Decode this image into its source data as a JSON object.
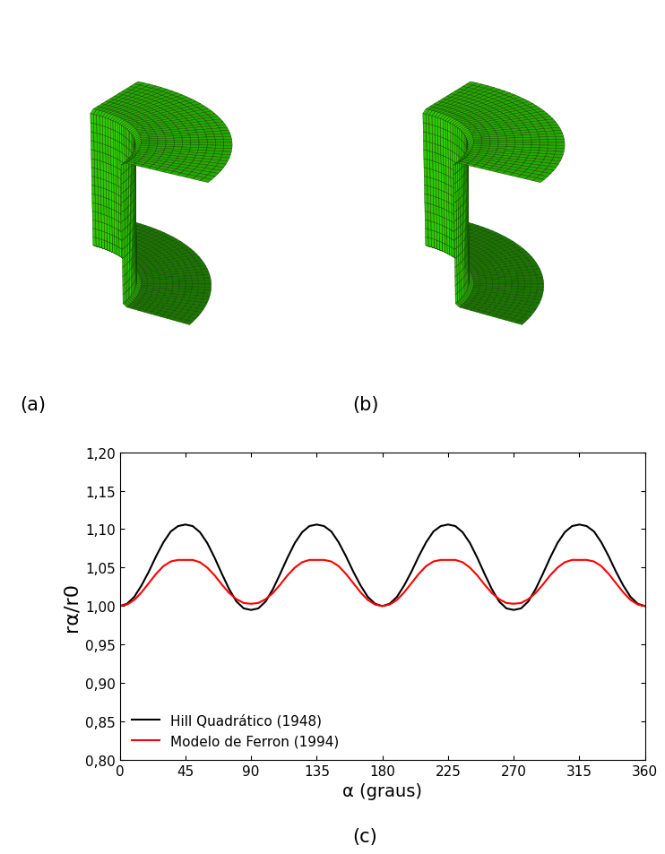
{
  "chart_data": {
    "type": "line",
    "xlabel": "α (graus)",
    "ylabel": "rα/r0",
    "annotations": [
      "(a)",
      "(b)",
      "(c)"
    ],
    "x": [
      0,
      5,
      10,
      15,
      20,
      25,
      30,
      35,
      40,
      45,
      50,
      55,
      60,
      65,
      70,
      75,
      80,
      85,
      90,
      95,
      100,
      105,
      110,
      115,
      120,
      125,
      130,
      135,
      140,
      145,
      150,
      155,
      160,
      165,
      170,
      175,
      180,
      185,
      190,
      195,
      200,
      205,
      210,
      215,
      220,
      225,
      230,
      235,
      240,
      245,
      250,
      255,
      260,
      265,
      270,
      275,
      280,
      285,
      290,
      295,
      300,
      305,
      310,
      315,
      320,
      325,
      330,
      335,
      340,
      345,
      350,
      355,
      360
    ],
    "series": [
      {
        "name": "Hill Quadrático (1948)",
        "color": "#000000",
        "values": [
          1.0,
          1.003,
          1.012,
          1.027,
          1.045,
          1.065,
          1.083,
          1.097,
          1.104,
          1.106,
          1.104,
          1.096,
          1.082,
          1.063,
          1.042,
          1.022,
          1.006,
          0.997,
          0.995,
          0.997,
          1.006,
          1.022,
          1.042,
          1.063,
          1.082,
          1.096,
          1.104,
          1.106,
          1.104,
          1.097,
          1.083,
          1.065,
          1.045,
          1.027,
          1.012,
          1.003,
          1.0,
          1.003,
          1.012,
          1.027,
          1.045,
          1.065,
          1.083,
          1.097,
          1.104,
          1.106,
          1.104,
          1.096,
          1.082,
          1.063,
          1.042,
          1.022,
          1.006,
          0.997,
          0.995,
          0.997,
          1.006,
          1.022,
          1.042,
          1.063,
          1.082,
          1.096,
          1.104,
          1.106,
          1.104,
          1.097,
          1.083,
          1.065,
          1.045,
          1.027,
          1.012,
          1.003,
          1.0
        ]
      },
      {
        "name": "Modelo de Ferron (1994)",
        "color": "#ff0000",
        "values": [
          1.0,
          1.002,
          1.008,
          1.018,
          1.03,
          1.042,
          1.052,
          1.058,
          1.06,
          1.06,
          1.06,
          1.057,
          1.05,
          1.04,
          1.028,
          1.017,
          1.009,
          1.004,
          1.003,
          1.004,
          1.009,
          1.017,
          1.028,
          1.04,
          1.05,
          1.057,
          1.06,
          1.06,
          1.06,
          1.058,
          1.052,
          1.042,
          1.03,
          1.018,
          1.008,
          1.002,
          1.0,
          1.002,
          1.008,
          1.018,
          1.03,
          1.042,
          1.052,
          1.058,
          1.06,
          1.06,
          1.06,
          1.057,
          1.05,
          1.04,
          1.028,
          1.017,
          1.009,
          1.004,
          1.003,
          1.004,
          1.009,
          1.017,
          1.028,
          1.04,
          1.05,
          1.057,
          1.06,
          1.06,
          1.06,
          1.058,
          1.052,
          1.042,
          1.03,
          1.018,
          1.008,
          1.002,
          1.0
        ]
      }
    ],
    "xlim": [
      0,
      360
    ],
    "xticks": [
      0,
      45,
      90,
      135,
      180,
      225,
      270,
      315,
      360
    ],
    "ylim": [
      0.8,
      1.2
    ],
    "yticks": [
      {
        "value": 0.8,
        "label": "0,80"
      },
      {
        "value": 0.85,
        "label": "0,85"
      },
      {
        "value": 0.9,
        "label": "0,90"
      },
      {
        "value": 0.95,
        "label": "0,95"
      },
      {
        "value": 1.0,
        "label": "1,00"
      },
      {
        "value": 1.05,
        "label": "1,05"
      },
      {
        "value": 1.1,
        "label": "1,10"
      },
      {
        "value": 1.15,
        "label": "1,15"
      },
      {
        "value": 1.2,
        "label": "1,20"
      }
    ],
    "legend": "lower left",
    "grid": false
  }
}
